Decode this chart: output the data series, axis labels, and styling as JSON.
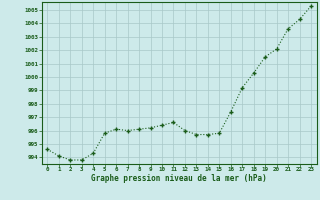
{
  "x": [
    0,
    1,
    2,
    3,
    4,
    5,
    6,
    7,
    8,
    9,
    10,
    11,
    12,
    13,
    14,
    15,
    16,
    17,
    18,
    19,
    20,
    21,
    22,
    23
  ],
  "y": [
    994.6,
    994.1,
    993.8,
    993.8,
    994.3,
    995.8,
    996.1,
    996.0,
    996.1,
    996.2,
    996.4,
    996.6,
    996.0,
    995.7,
    995.7,
    995.8,
    997.4,
    999.2,
    1000.3,
    1001.5,
    1002.1,
    1003.6,
    1004.3,
    1005.3
  ],
  "line_color": "#1a5c1a",
  "marker_color": "#1a5c1a",
  "bg_color": "#cdeaea",
  "grid_color": "#a8c8c8",
  "xlabel": "Graphe pression niveau de la mer (hPa)",
  "ylim": [
    993.5,
    1005.6
  ],
  "yticks": [
    994,
    995,
    996,
    997,
    998,
    999,
    1000,
    1001,
    1002,
    1003,
    1004,
    1005
  ],
  "xticks": [
    0,
    1,
    2,
    3,
    4,
    5,
    6,
    7,
    8,
    9,
    10,
    11,
    12,
    13,
    14,
    15,
    16,
    17,
    18,
    19,
    20,
    21,
    22,
    23
  ],
  "xtick_labels": [
    "0",
    "1",
    "2",
    "3",
    "4",
    "5",
    "6",
    "7",
    "8",
    "9",
    "10",
    "11",
    "12",
    "13",
    "14",
    "15",
    "16",
    "17",
    "18",
    "19",
    "20",
    "21",
    "22",
    "23"
  ],
  "xlim": [
    -0.5,
    23.5
  ]
}
